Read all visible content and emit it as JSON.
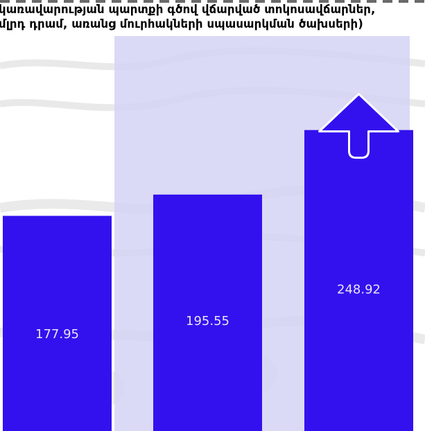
{
  "chart_data": {
    "type": "bar",
    "title_lines": [
      "կառավարության պարտքի գծով վճարված տոկոսավճարներ,",
      "մլրդ դրամ, առանց մուրհակների սպասարկման ծախսերի)"
    ],
    "categories": [
      "",
      "",
      ""
    ],
    "values": [
      177.95,
      195.55,
      248.92
    ],
    "value_labels": [
      "177.95",
      "195.55",
      "248.92"
    ],
    "ylim": [
      0,
      290
    ],
    "grid": false,
    "legend": "none",
    "highlight_index": 1,
    "annotation": "up-arrow-on-last-bar"
  },
  "colors": {
    "bar": "#3311ee",
    "highlight": "#d4d4f5",
    "label": "#e6e6f7",
    "arrow_fill": "#3311ee",
    "arrow_stroke": "#ffffff",
    "title": "#000000"
  },
  "icons": {
    "arrow": "up-arrow-icon"
  }
}
